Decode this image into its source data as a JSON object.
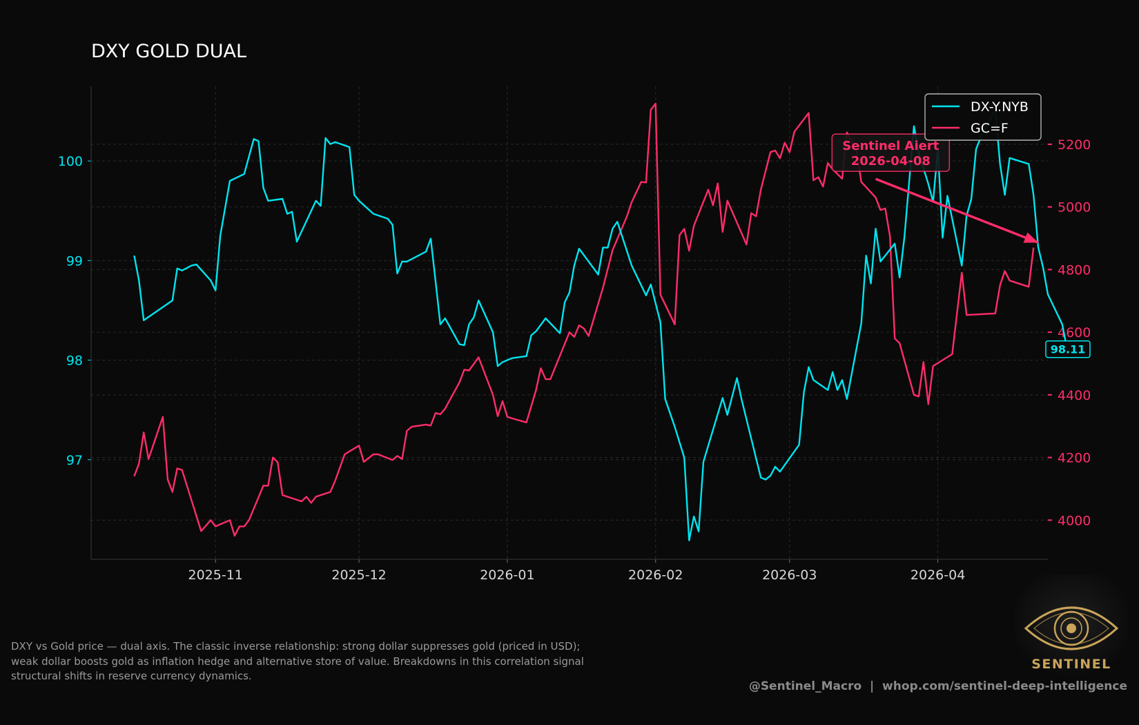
{
  "chart_data": {
    "type": "line",
    "title": "DXY GOLD DUAL",
    "x_ticks": [
      "2025-11",
      "2025-12",
      "2026-01",
      "2026-02",
      "2026-03",
      "2026-04"
    ],
    "x_range": [
      "2025-10-06",
      "2026-04-24"
    ],
    "y_left": {
      "ticks": [
        97,
        98,
        99,
        100
      ],
      "range": [
        96.0,
        100.75
      ],
      "color": "#00e5f0"
    },
    "y_right": {
      "ticks": [
        4000,
        4200,
        4400,
        4600,
        4800,
        5000,
        5200
      ],
      "range": [
        3875,
        5385
      ],
      "color": "#ff2d6a"
    },
    "grid": true,
    "legend_position": "top-right",
    "series": [
      {
        "name": "DX-Y.NYB",
        "axis": "left",
        "color": "#00e5f0",
        "points": [
          [
            "2025-10-15",
            99.05
          ],
          [
            "2025-10-16",
            98.8
          ],
          [
            "2025-10-17",
            98.4
          ],
          [
            "2025-10-20",
            98.5
          ],
          [
            "2025-10-23",
            98.6
          ],
          [
            "2025-10-24",
            98.92
          ],
          [
            "2025-10-25",
            98.9
          ],
          [
            "2025-10-27",
            98.95
          ],
          [
            "2025-10-28",
            98.96
          ],
          [
            "2025-10-31",
            98.8
          ],
          [
            "2025-11-01",
            98.7
          ],
          [
            "2025-11-02",
            99.25
          ],
          [
            "2025-11-04",
            99.8
          ],
          [
            "2025-11-07",
            99.87
          ],
          [
            "2025-11-09",
            100.22
          ],
          [
            "2025-11-10",
            100.2
          ],
          [
            "2025-11-11",
            99.73
          ],
          [
            "2025-11-12",
            99.6
          ],
          [
            "2025-11-15",
            99.62
          ],
          [
            "2025-11-16",
            99.47
          ],
          [
            "2025-11-17",
            99.49
          ],
          [
            "2025-11-18",
            99.19
          ],
          [
            "2025-11-22",
            99.6
          ],
          [
            "2025-11-23",
            99.55
          ],
          [
            "2025-11-24",
            100.23
          ],
          [
            "2025-11-25",
            100.17
          ],
          [
            "2025-11-26",
            100.19
          ],
          [
            "2025-11-29",
            100.14
          ],
          [
            "2025-11-30",
            99.66
          ],
          [
            "2025-12-01",
            99.6
          ],
          [
            "2025-12-04",
            99.47
          ],
          [
            "2025-12-07",
            99.42
          ],
          [
            "2025-12-08",
            99.36
          ],
          [
            "2025-12-09",
            98.87
          ],
          [
            "2025-12-10",
            98.99
          ],
          [
            "2025-12-11",
            98.99
          ],
          [
            "2025-12-15",
            99.09
          ],
          [
            "2025-12-16",
            99.22
          ],
          [
            "2025-12-17",
            98.79
          ],
          [
            "2025-12-18",
            98.36
          ],
          [
            "2025-12-19",
            98.42
          ],
          [
            "2025-12-22",
            98.16
          ],
          [
            "2025-12-23",
            98.15
          ],
          [
            "2025-12-24",
            98.36
          ],
          [
            "2025-12-25",
            98.43
          ],
          [
            "2025-12-26",
            98.6
          ],
          [
            "2025-12-29",
            98.28
          ],
          [
            "2025-12-30",
            97.94
          ],
          [
            "2025-12-31",
            97.98
          ],
          [
            "2026-01-02",
            98.02
          ],
          [
            "2026-01-05",
            98.04
          ],
          [
            "2026-01-06",
            98.25
          ],
          [
            "2026-01-07",
            98.29
          ],
          [
            "2026-01-09",
            98.42
          ],
          [
            "2026-01-12",
            98.27
          ],
          [
            "2026-01-13",
            98.58
          ],
          [
            "2026-01-14",
            98.68
          ],
          [
            "2026-01-15",
            98.95
          ],
          [
            "2026-01-16",
            99.12
          ],
          [
            "2026-01-20",
            98.86
          ],
          [
            "2026-01-21",
            99.13
          ],
          [
            "2026-01-22",
            99.13
          ],
          [
            "2026-01-23",
            99.32
          ],
          [
            "2026-01-24",
            99.39
          ],
          [
            "2026-01-27",
            98.95
          ],
          [
            "2026-01-30",
            98.65
          ],
          [
            "2026-01-31",
            98.76
          ],
          [
            "2026-02-02",
            98.38
          ],
          [
            "2026-02-03",
            97.61
          ],
          [
            "2026-02-05",
            97.33
          ],
          [
            "2026-02-07",
            97.02
          ],
          [
            "2026-02-08",
            96.19
          ],
          [
            "2026-02-09",
            96.43
          ],
          [
            "2026-02-10",
            96.28
          ],
          [
            "2026-02-11",
            96.98
          ],
          [
            "2026-02-15",
            97.62
          ],
          [
            "2026-02-16",
            97.45
          ],
          [
            "2026-02-18",
            97.82
          ],
          [
            "2026-02-19",
            97.6
          ],
          [
            "2026-02-23",
            96.82
          ],
          [
            "2026-02-24",
            96.8
          ],
          [
            "2026-02-25",
            96.84
          ],
          [
            "2026-02-26",
            96.93
          ],
          [
            "2026-02-27",
            96.88
          ],
          [
            "2026-03-03",
            97.15
          ],
          [
            "2026-03-04",
            97.68
          ],
          [
            "2026-03-05",
            97.93
          ],
          [
            "2026-03-06",
            97.8
          ],
          [
            "2026-03-09",
            97.7
          ],
          [
            "2026-03-10",
            97.88
          ],
          [
            "2026-03-11",
            97.7
          ],
          [
            "2026-03-12",
            97.8
          ],
          [
            "2026-03-13",
            97.61
          ],
          [
            "2026-03-16",
            98.37
          ],
          [
            "2026-03-17",
            99.05
          ],
          [
            "2026-03-18",
            98.77
          ],
          [
            "2026-03-19",
            99.32
          ],
          [
            "2026-03-20",
            98.99
          ],
          [
            "2026-03-23",
            99.17
          ],
          [
            "2026-03-24",
            98.83
          ],
          [
            "2026-03-25",
            99.23
          ],
          [
            "2026-03-27",
            100.35
          ],
          [
            "2026-03-28",
            100.08
          ],
          [
            "2026-03-30",
            99.77
          ],
          [
            "2026-03-31",
            99.59
          ],
          [
            "2026-04-01",
            100.12
          ],
          [
            "2026-04-02",
            99.23
          ],
          [
            "2026-04-03",
            99.65
          ],
          [
            "2026-04-06",
            98.95
          ],
          [
            "2026-04-07",
            99.45
          ],
          [
            "2026-04-08",
            99.62
          ],
          [
            "2026-04-09",
            100.12
          ],
          [
            "2026-04-10",
            100.24
          ],
          [
            "2026-04-13",
            100.52
          ],
          [
            "2026-04-14",
            99.97
          ],
          [
            "2026-04-15",
            99.66
          ],
          [
            "2026-04-16",
            100.03
          ],
          [
            "2026-04-20",
            99.97
          ],
          [
            "2026-04-21",
            99.66
          ],
          [
            "2026-04-22",
            99.13
          ],
          [
            "2026-04-23",
            98.93
          ],
          [
            "2026-04-24",
            98.66
          ],
          [
            "2026-04-27",
            98.36
          ],
          [
            "2026-04-28",
            98.11
          ]
        ]
      },
      {
        "name": "GC=F",
        "axis": "right",
        "color": "#ff2d6a",
        "points": [
          [
            "2025-10-15",
            4140
          ],
          [
            "2025-10-16",
            4180
          ],
          [
            "2025-10-17",
            4280
          ],
          [
            "2025-10-18",
            4195
          ],
          [
            "2025-10-21",
            4330
          ],
          [
            "2025-10-22",
            4130
          ],
          [
            "2025-10-23",
            4090
          ],
          [
            "2025-10-24",
            4165
          ],
          [
            "2025-10-25",
            4160
          ],
          [
            "2025-10-29",
            3965
          ],
          [
            "2025-10-31",
            4000
          ],
          [
            "2025-11-01",
            3980
          ],
          [
            "2025-11-04",
            4000
          ],
          [
            "2025-11-05",
            3950
          ],
          [
            "2025-11-06",
            3980
          ],
          [
            "2025-11-07",
            3980
          ],
          [
            "2025-11-08",
            4000
          ],
          [
            "2025-11-11",
            4110
          ],
          [
            "2025-11-12",
            4110
          ],
          [
            "2025-11-13",
            4200
          ],
          [
            "2025-11-14",
            4185
          ],
          [
            "2025-11-15",
            4080
          ],
          [
            "2025-11-19",
            4060
          ],
          [
            "2025-11-20",
            4075
          ],
          [
            "2025-11-21",
            4055
          ],
          [
            "2025-11-22",
            4075
          ],
          [
            "2025-11-25",
            4090
          ],
          [
            "2025-11-26",
            4125
          ],
          [
            "2025-11-28",
            4210
          ],
          [
            "2025-12-01",
            4238
          ],
          [
            "2025-12-02",
            4186
          ],
          [
            "2025-12-04",
            4210
          ],
          [
            "2025-12-05",
            4210
          ],
          [
            "2025-12-08",
            4192
          ],
          [
            "2025-12-09",
            4205
          ],
          [
            "2025-12-10",
            4195
          ],
          [
            "2025-12-11",
            4285
          ],
          [
            "2025-12-12",
            4298
          ],
          [
            "2025-12-15",
            4305
          ],
          [
            "2025-12-16",
            4302
          ],
          [
            "2025-12-17",
            4342
          ],
          [
            "2025-12-18",
            4338
          ],
          [
            "2025-12-19",
            4356
          ],
          [
            "2025-12-22",
            4440
          ],
          [
            "2025-12-23",
            4480
          ],
          [
            "2025-12-24",
            4478
          ],
          [
            "2025-12-26",
            4520
          ],
          [
            "2025-12-29",
            4400
          ],
          [
            "2025-12-30",
            4332
          ],
          [
            "2025-12-31",
            4380
          ],
          [
            "2026-01-01",
            4330
          ],
          [
            "2026-01-02",
            4325
          ],
          [
            "2026-01-05",
            4312
          ],
          [
            "2026-01-07",
            4415
          ],
          [
            "2026-01-08",
            4485
          ],
          [
            "2026-01-09",
            4450
          ],
          [
            "2026-01-10",
            4450
          ],
          [
            "2026-01-14",
            4600
          ],
          [
            "2026-01-15",
            4585
          ],
          [
            "2026-01-16",
            4622
          ],
          [
            "2026-01-17",
            4612
          ],
          [
            "2026-01-18",
            4588
          ],
          [
            "2026-01-21",
            4742
          ],
          [
            "2026-01-23",
            4862
          ],
          [
            "2026-01-26",
            4970
          ],
          [
            "2026-01-27",
            5015
          ],
          [
            "2026-01-29",
            5080
          ],
          [
            "2026-01-30",
            5078
          ],
          [
            "2026-01-31",
            5310
          ],
          [
            "2026-02-01",
            5330
          ],
          [
            "2026-02-02",
            4720
          ],
          [
            "2026-02-05",
            4625
          ],
          [
            "2026-02-06",
            4910
          ],
          [
            "2026-02-07",
            4930
          ],
          [
            "2026-02-08",
            4860
          ],
          [
            "2026-02-09",
            4940
          ],
          [
            "2026-02-12",
            5055
          ],
          [
            "2026-02-13",
            5005
          ],
          [
            "2026-02-14",
            5075
          ],
          [
            "2026-02-15",
            4920
          ],
          [
            "2026-02-16",
            5020
          ],
          [
            "2026-02-20",
            4880
          ],
          [
            "2026-02-21",
            4980
          ],
          [
            "2026-02-22",
            4970
          ],
          [
            "2026-02-23",
            5055
          ],
          [
            "2026-02-25",
            5175
          ],
          [
            "2026-02-26",
            5180
          ],
          [
            "2026-02-27",
            5155
          ],
          [
            "2026-02-28",
            5205
          ],
          [
            "2026-03-01",
            5175
          ],
          [
            "2026-03-02",
            5240
          ],
          [
            "2026-03-05",
            5300
          ],
          [
            "2026-03-06",
            5085
          ],
          [
            "2026-03-07",
            5095
          ],
          [
            "2026-03-08",
            5065
          ],
          [
            "2026-03-09",
            5140
          ],
          [
            "2026-03-10",
            5120
          ],
          [
            "2026-03-12",
            5090
          ],
          [
            "2026-03-13",
            5238
          ],
          [
            "2026-03-15",
            5180
          ],
          [
            "2026-03-16",
            5080
          ],
          [
            "2026-03-19",
            5030
          ],
          [
            "2026-03-20",
            4990
          ],
          [
            "2026-03-21",
            4995
          ],
          [
            "2026-03-22",
            4905
          ],
          [
            "2026-03-23",
            4580
          ],
          [
            "2026-03-24",
            4565
          ],
          [
            "2026-03-27",
            4400
          ],
          [
            "2026-03-28",
            4395
          ],
          [
            "2026-03-29",
            4505
          ],
          [
            "2026-03-30",
            4370
          ],
          [
            "2026-03-31",
            4492
          ],
          [
            "2026-04-04",
            4530
          ],
          [
            "2026-04-06",
            4790
          ],
          [
            "2026-04-07",
            4655
          ],
          [
            "2026-04-13",
            4660
          ],
          [
            "2026-04-14",
            4750
          ],
          [
            "2026-04-15",
            4795
          ],
          [
            "2026-04-16",
            4765
          ],
          [
            "2026-04-20",
            4745
          ],
          [
            "2026-04-21",
            4870
          ]
        ]
      }
    ],
    "annotation": {
      "label_line1": "Sentinel Aiert",
      "label_line2": "2026-04-08",
      "box_at": [
        "2026-03-22",
        100.07
      ],
      "arrow_from": [
        "2026-03-19",
        99.82
      ],
      "arrow_to": [
        "2026-04-22",
        99.18
      ]
    },
    "last_value_badge": "98.11"
  },
  "caption": "DXY vs Gold price — dual axis. The classic inverse relationship: strong dollar suppresses gold (priced in USD); weak dollar boosts gold as inflation hedge and alternative store of value. Breakdowns in this correlation signal structural shifts in reserve currency dynamics.",
  "footer": {
    "handle": "@Sentinel_Macro",
    "separator": "|",
    "site": "whop.com/sentinel-deep-intelligence"
  },
  "logo": {
    "text": "SENTINEL",
    "icon": "eye-icon",
    "color": "#c9a45a"
  }
}
